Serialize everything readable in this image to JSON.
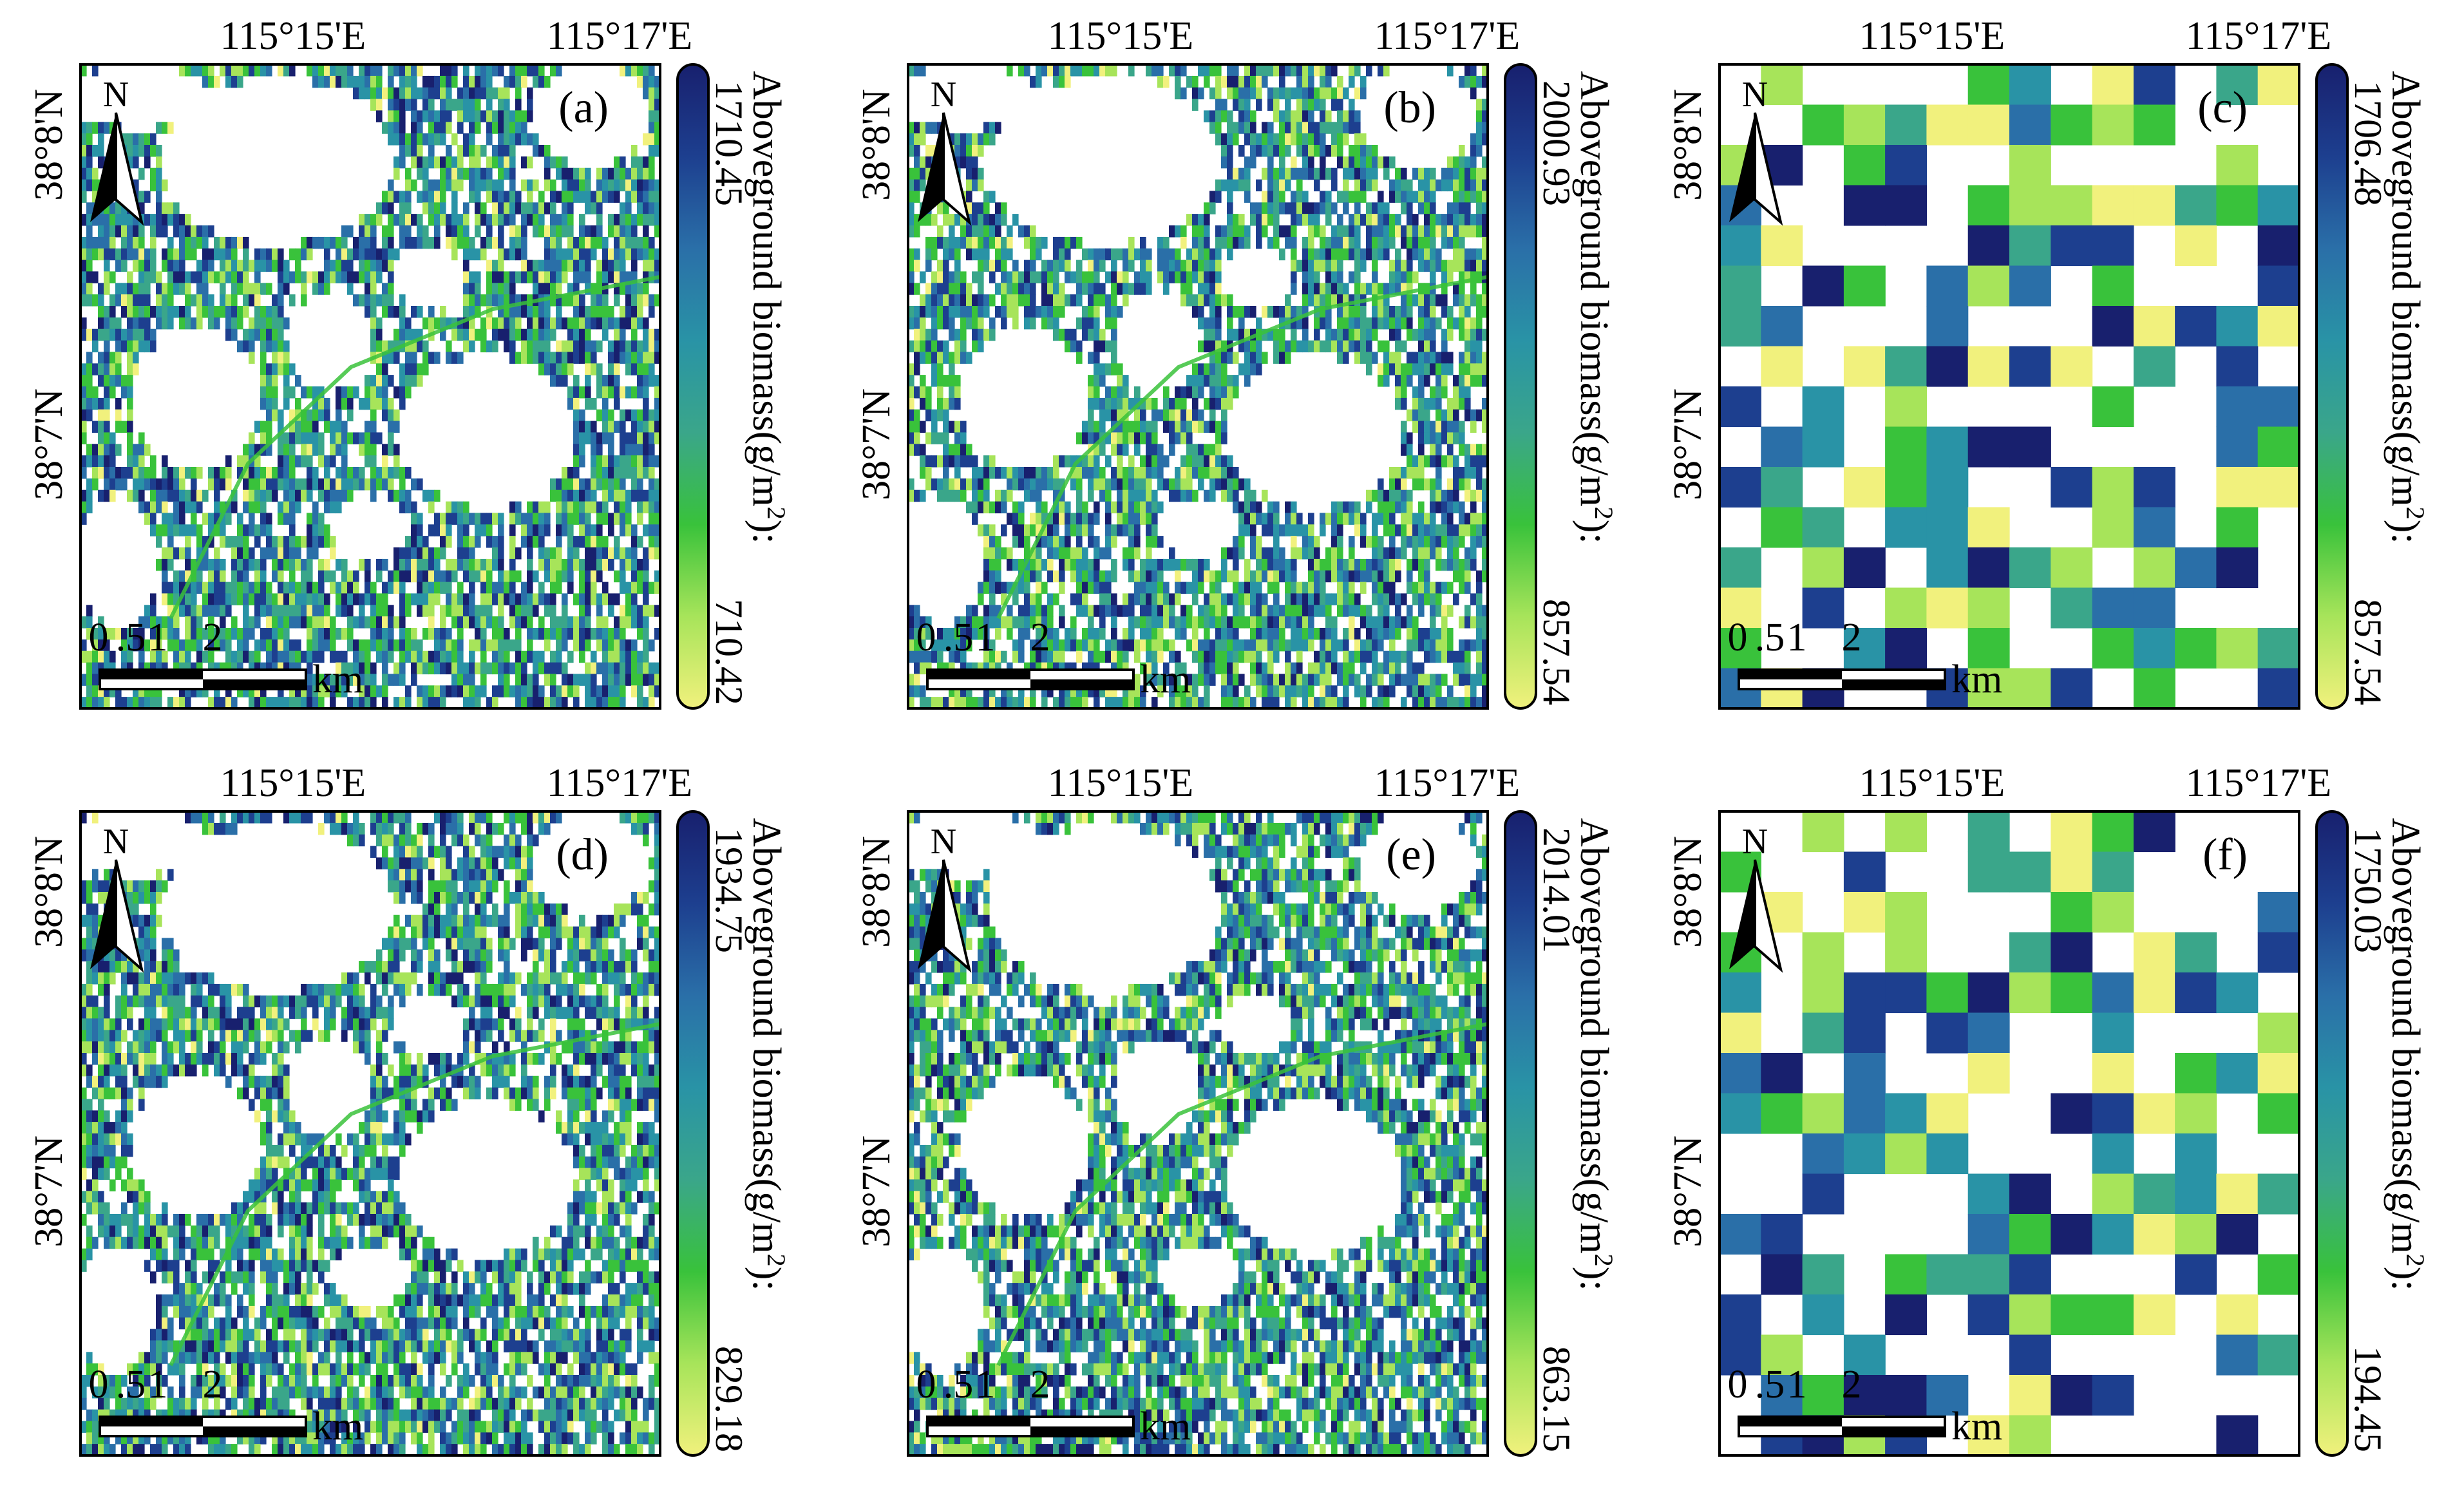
{
  "figure": {
    "panels": [
      {
        "label": "(a)",
        "style": "fine",
        "seed": 11,
        "lon_labels": [
          "115°15'E",
          "115°17'E"
        ],
        "lat_labels": [
          "38°8'N",
          "38°7'N"
        ],
        "colorbar": {
          "max": "1710.45",
          "min": "710.42",
          "title": "Aboveground biomass(g/m",
          "title_sup": "2",
          "title_end": "):"
        },
        "scale_bar": {
          "ticks": [
            "0",
            ".5",
            "1",
            "2"
          ],
          "unit": "km"
        },
        "north": "N"
      },
      {
        "label": "(b)",
        "style": "fine",
        "seed": 23,
        "lon_labels": [
          "115°15'E",
          "115°17'E"
        ],
        "lat_labels": [
          "38°8'N",
          "38°7'N"
        ],
        "colorbar": {
          "max": "2000.93",
          "min": "857.54",
          "title": "Aboveground biomass(g/m",
          "title_sup": "2",
          "title_end": "):"
        },
        "scale_bar": {
          "ticks": [
            "0",
            ".5",
            "1",
            "2"
          ],
          "unit": "km"
        },
        "north": "N"
      },
      {
        "label": "(c)",
        "style": "coarse",
        "seed": 37,
        "lon_labels": [
          "115°15'E",
          "115°17'E"
        ],
        "lat_labels": [
          "38°8'N",
          "38°7'N"
        ],
        "colorbar": {
          "max": "1706.48",
          "min": "857.54",
          "title": "Aboveground biomass(g/m",
          "title_sup": "2",
          "title_end": "):"
        },
        "scale_bar": {
          "ticks": [
            "0",
            ".5",
            "1",
            "2"
          ],
          "unit": "km"
        },
        "north": "N"
      },
      {
        "label": "(d)",
        "style": "fine",
        "seed": 41,
        "lon_labels": [
          "115°15'E",
          "115°17'E"
        ],
        "lat_labels": [
          "38°8'N",
          "38°7'N"
        ],
        "colorbar": {
          "max": "1934.75",
          "min": "829.18",
          "title": "Aboveground biomass(g/m",
          "title_sup": "2",
          "title_end": "):"
        },
        "scale_bar": {
          "ticks": [
            "0",
            ".5",
            "1",
            "2"
          ],
          "unit": "km"
        },
        "north": "N"
      },
      {
        "label": "(e)",
        "style": "fine",
        "seed": 53,
        "lon_labels": [
          "115°15'E",
          "115°17'E"
        ],
        "lat_labels": [
          "38°8'N",
          "38°7'N"
        ],
        "colorbar": {
          "max": "2014.01",
          "min": "863.15",
          "title": "Aboveground biomass(g/m",
          "title_sup": "2",
          "title_end": "):"
        },
        "scale_bar": {
          "ticks": [
            "0",
            ".5",
            "1",
            "2"
          ],
          "unit": "km"
        },
        "north": "N"
      },
      {
        "label": "(f)",
        "style": "coarse",
        "seed": 67,
        "lon_labels": [
          "115°15'E",
          "115°17'E"
        ],
        "lat_labels": [
          "38°8'N",
          "38°7'N"
        ],
        "colorbar": {
          "max": "1750.03",
          "min": "194.45",
          "title": "Aboveground biomass(g/m",
          "title_sup": "2",
          "title_end": "):"
        },
        "scale_bar": {
          "ticks": [
            "0",
            ".5",
            "1",
            "2"
          ],
          "unit": "km"
        },
        "north": "N"
      }
    ],
    "colors": {
      "ramp": [
        "#f1f17d",
        "#a7e45a",
        "#39c23b",
        "#3aa68a",
        "#2993a6",
        "#2a6fa8",
        "#1d3f8f",
        "#18206e"
      ],
      "frame": "#000000",
      "background": "#ffffff"
    }
  }
}
